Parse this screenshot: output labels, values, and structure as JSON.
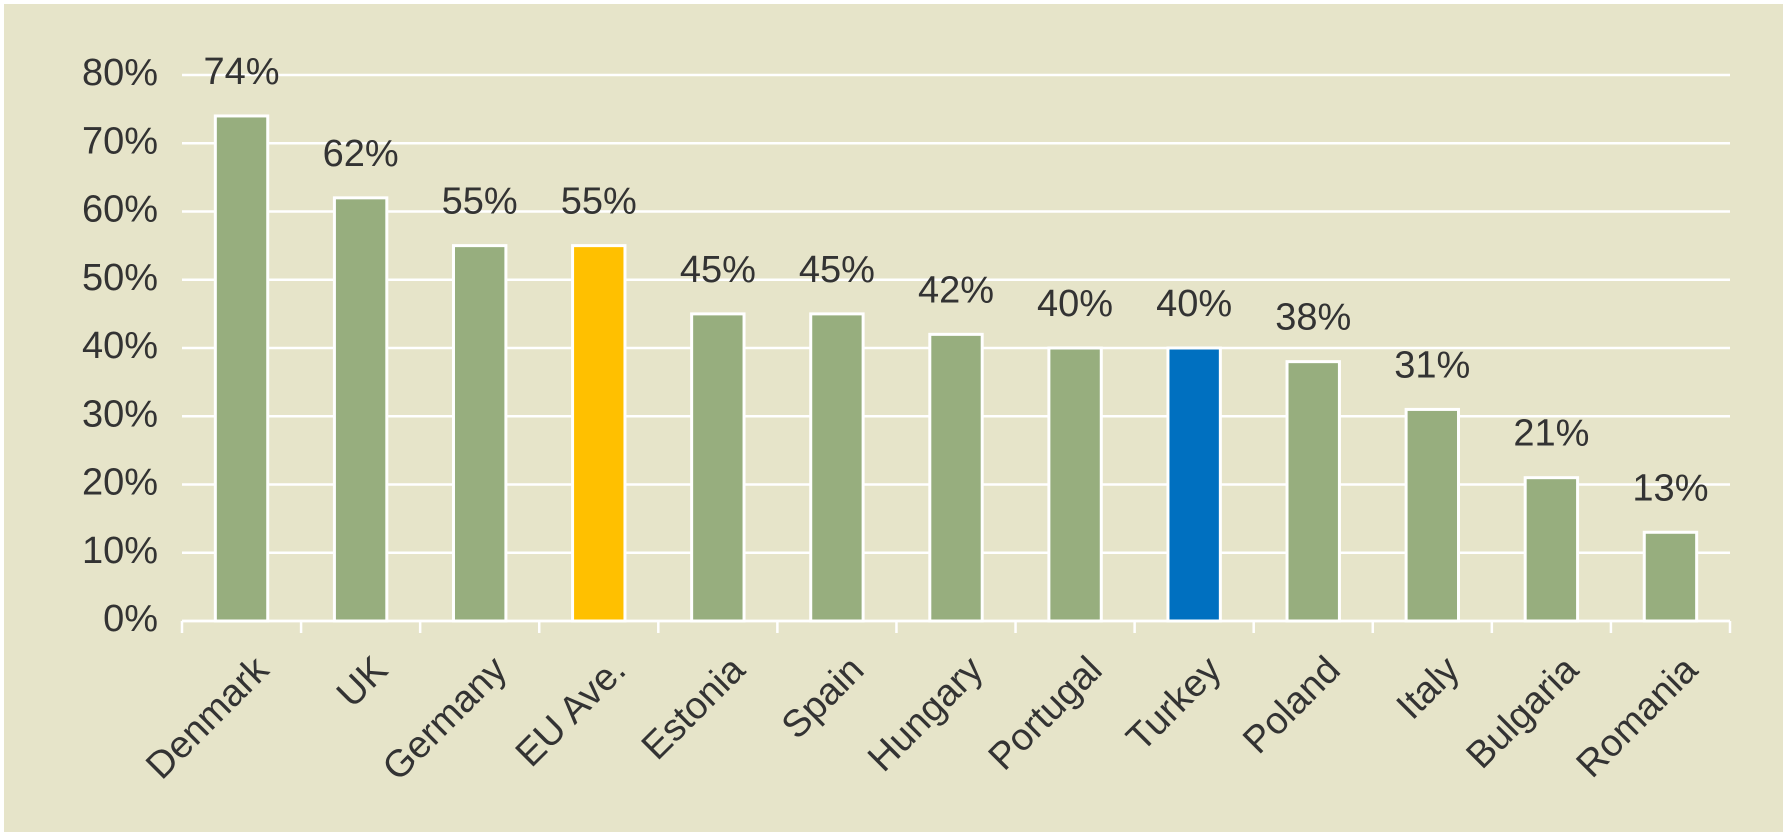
{
  "chart_data": {
    "type": "bar",
    "categories": [
      "Denmark",
      "UK",
      "Germany",
      "EU Ave.",
      "Estonia",
      "Spain",
      "Hungary",
      "Portugal",
      "Turkey",
      "Poland",
      "Italy",
      "Bulgaria",
      "Romania"
    ],
    "values": [
      74,
      62,
      55,
      55,
      45,
      45,
      42,
      40,
      40,
      38,
      31,
      21,
      13
    ],
    "value_labels": [
      "74%",
      "62%",
      "55%",
      "55%",
      "45%",
      "45%",
      "42%",
      "40%",
      "40%",
      "38%",
      "31%",
      "21%",
      "13%"
    ],
    "colors": [
      "#97ae7e",
      "#97ae7e",
      "#97ae7e",
      "#ffc000",
      "#97ae7e",
      "#97ae7e",
      "#97ae7e",
      "#97ae7e",
      "#0070c0",
      "#97ae7e",
      "#97ae7e",
      "#97ae7e",
      "#97ae7e"
    ],
    "ylim": [
      0,
      80
    ],
    "yticks": [
      {
        "value": 0,
        "label": "0%"
      },
      {
        "value": 10,
        "label": "10%"
      },
      {
        "value": 20,
        "label": "20%"
      },
      {
        "value": 30,
        "label": "30%"
      },
      {
        "value": 40,
        "label": "40%"
      },
      {
        "value": 50,
        "label": "50%"
      },
      {
        "value": 60,
        "label": "60%"
      },
      {
        "value": 70,
        "label": "70%"
      },
      {
        "value": 80,
        "label": "80%"
      }
    ],
    "grid": true
  }
}
